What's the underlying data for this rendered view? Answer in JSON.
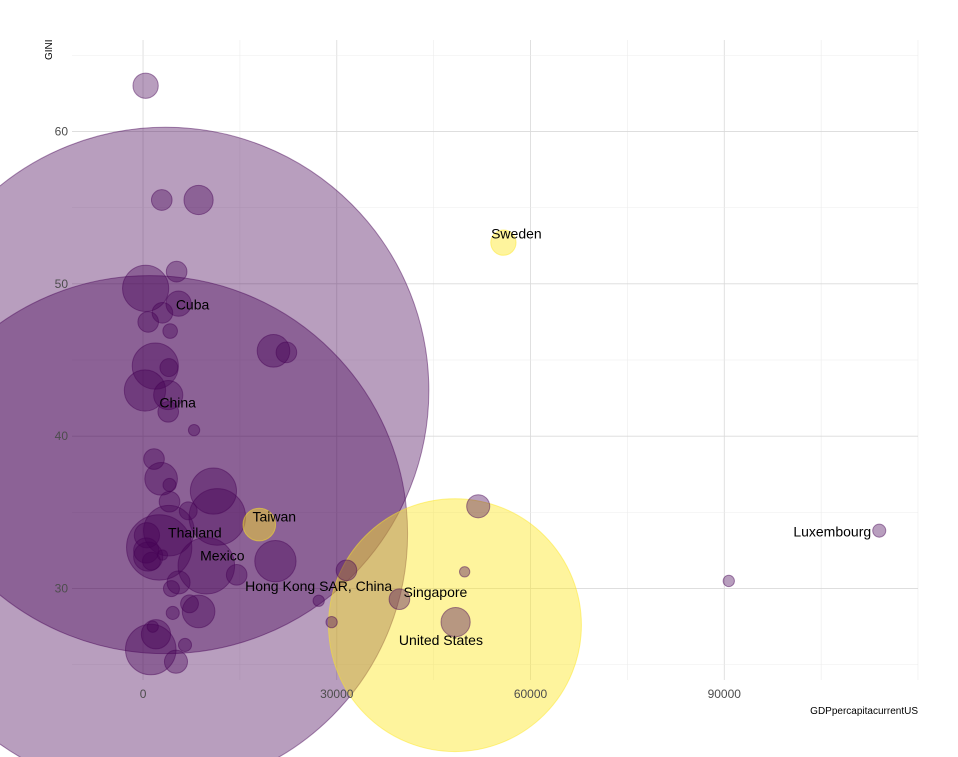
{
  "chart_data": {
    "type": "scatter",
    "xlabel": "GDPpercapitacurrentUS",
    "ylabel": "GINI",
    "xlim": [
      -11000,
      120000
    ],
    "ylim": [
      24,
      66
    ],
    "xticks": [
      0,
      30000,
      60000,
      90000
    ],
    "xtick_labels": [
      "0",
      "30000",
      "60000",
      "90000"
    ],
    "yticks": [
      30,
      40,
      50,
      60
    ],
    "ytick_labels": [
      "30",
      "40",
      "50",
      "60"
    ],
    "grid": true,
    "legend": "none",
    "colors": {
      "default": "#440154",
      "highlight": "#FDE725"
    },
    "points": [
      {
        "x": 400,
        "y": 63.0,
        "s": 3,
        "hl": false
      },
      {
        "x": 2900,
        "y": 55.5,
        "s": 2,
        "hl": false
      },
      {
        "x": 8600,
        "y": 55.5,
        "s": 4,
        "hl": false
      },
      {
        "x": 55800,
        "y": 52.7,
        "s": 3,
        "hl": true,
        "label": "Sweden"
      },
      {
        "x": 5200,
        "y": 50.8,
        "s": 2,
        "hl": false
      },
      {
        "x": 400,
        "y": 49.7,
        "s": 10,
        "hl": false
      },
      {
        "x": 5500,
        "y": 48.7,
        "s": 3,
        "hl": false,
        "label": "Cuba"
      },
      {
        "x": 3000,
        "y": 48.1,
        "s": 2,
        "hl": false
      },
      {
        "x": 800,
        "y": 47.5,
        "s": 2,
        "hl": false
      },
      {
        "x": 4200,
        "y": 46.9,
        "s": 1,
        "hl": false
      },
      {
        "x": 20200,
        "y": 45.6,
        "s": 5,
        "hl": false
      },
      {
        "x": 22200,
        "y": 45.5,
        "s": 2,
        "hl": false
      },
      {
        "x": 1900,
        "y": 44.6,
        "s": 10,
        "hl": false
      },
      {
        "x": 4000,
        "y": 44.5,
        "s": 1.5,
        "hl": false
      },
      {
        "x": 3500,
        "y": 43.0,
        "s": 1300,
        "hl": false,
        "label": "China"
      },
      {
        "x": 300,
        "y": 43.0,
        "s": 8,
        "hl": false
      },
      {
        "x": 3900,
        "y": 42.7,
        "s": 4,
        "hl": false
      },
      {
        "x": 3900,
        "y": 41.6,
        "s": 2,
        "hl": false
      },
      {
        "x": 7900,
        "y": 40.4,
        "s": 0.6,
        "hl": false
      },
      {
        "x": 1700,
        "y": 38.5,
        "s": 2,
        "hl": false
      },
      {
        "x": 10900,
        "y": 36.4,
        "s": 10,
        "hl": false
      },
      {
        "x": 2800,
        "y": 37.2,
        "s": 5,
        "hl": false
      },
      {
        "x": 4100,
        "y": 36.8,
        "s": 0.8,
        "hl": false
      },
      {
        "x": 4100,
        "y": 35.7,
        "s": 2,
        "hl": false
      },
      {
        "x": 51900,
        "y": 35.4,
        "s": 2.5,
        "hl": false
      },
      {
        "x": 7000,
        "y": 35.1,
        "s": 1.5,
        "hl": false
      },
      {
        "x": 11500,
        "y": 34.7,
        "s": 15,
        "hl": false
      },
      {
        "x": 1000,
        "y": 33.6,
        "s": 1250,
        "hl": false
      },
      {
        "x": 18000,
        "y": 34.2,
        "s": 5,
        "hl": true,
        "label": "Taiwan"
      },
      {
        "x": 4000,
        "y": 33.8,
        "s": 12,
        "hl": false,
        "label": "Thailand"
      },
      {
        "x": 114000,
        "y": 33.8,
        "s": 0.8,
        "hl": false,
        "label": "Luxembourg"
      },
      {
        "x": 600,
        "y": 33.5,
        "s": 3,
        "hl": false
      },
      {
        "x": 2500,
        "y": 32.7,
        "s": 20,
        "hl": false
      },
      {
        "x": 500,
        "y": 32.5,
        "s": 3,
        "hl": false
      },
      {
        "x": 3000,
        "y": 32.2,
        "s": 0.5,
        "hl": false
      },
      {
        "x": 800,
        "y": 32.1,
        "s": 4,
        "hl": false
      },
      {
        "x": 1300,
        "y": 31.8,
        "s": 1.5,
        "hl": false
      },
      {
        "x": 20500,
        "y": 31.8,
        "s": 8,
        "hl": false
      },
      {
        "x": 9800,
        "y": 31.5,
        "s": 15,
        "hl": false,
        "label": "Mexico"
      },
      {
        "x": 31500,
        "y": 31.2,
        "s": 2,
        "hl": false
      },
      {
        "x": 49800,
        "y": 31.1,
        "s": 0.5,
        "hl": false
      },
      {
        "x": 14500,
        "y": 30.9,
        "s": 2,
        "hl": false,
        "label": "Hong Kong SAR, China"
      },
      {
        "x": 90700,
        "y": 30.5,
        "s": 0.6,
        "hl": false
      },
      {
        "x": 5500,
        "y": 30.4,
        "s": 2.5,
        "hl": false
      },
      {
        "x": 4400,
        "y": 30.0,
        "s": 1.2,
        "hl": false
      },
      {
        "x": 39700,
        "y": 29.3,
        "s": 2,
        "hl": false,
        "label": "Singapore"
      },
      {
        "x": 27200,
        "y": 29.2,
        "s": 0.6,
        "hl": false
      },
      {
        "x": 7200,
        "y": 29.0,
        "s": 1.5,
        "hl": false
      },
      {
        "x": 8600,
        "y": 28.5,
        "s": 5,
        "hl": false
      },
      {
        "x": 4600,
        "y": 28.4,
        "s": 0.8,
        "hl": false
      },
      {
        "x": 29200,
        "y": 27.8,
        "s": 0.6,
        "hl": false
      },
      {
        "x": 48400,
        "y": 27.8,
        "s": 4,
        "hl": false
      },
      {
        "x": 48300,
        "y": 27.6,
        "s": 300,
        "hl": true,
        "label": "United States"
      },
      {
        "x": 1500,
        "y": 27.5,
        "s": 0.6,
        "hl": false
      },
      {
        "x": 2000,
        "y": 27.0,
        "s": 4,
        "hl": false
      },
      {
        "x": 6500,
        "y": 26.3,
        "s": 0.8,
        "hl": false
      },
      {
        "x": 1200,
        "y": 26.0,
        "s": 12,
        "hl": false
      },
      {
        "x": 5100,
        "y": 25.2,
        "s": 2.5,
        "hl": false
      }
    ]
  }
}
